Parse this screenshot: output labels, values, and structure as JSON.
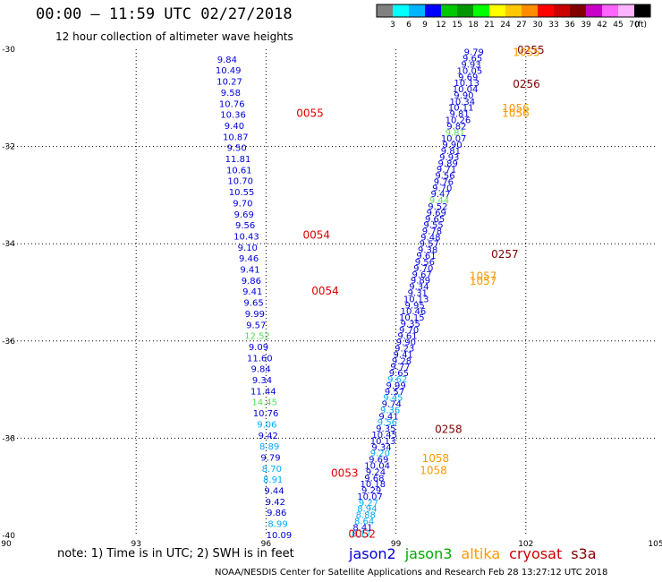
{
  "header": {
    "title": "00:00 – 11:59 UTC 02/27/2018",
    "subtitle": "12 hour collection of altimeter wave heights"
  },
  "legend_scale": {
    "unit": "(ft)",
    "bins": [
      {
        "label": "3",
        "color": "#808080"
      },
      {
        "label": "6",
        "color": "#00ffff"
      },
      {
        "label": "9",
        "color": "#00b4ff"
      },
      {
        "label": "12",
        "color": "#0000ff"
      },
      {
        "label": "15",
        "color": "#00c800"
      },
      {
        "label": "18",
        "color": "#009600"
      },
      {
        "label": "21",
        "color": "#00ff00"
      },
      {
        "label": "24",
        "color": "#ffff00"
      },
      {
        "label": "27",
        "color": "#ffc800"
      },
      {
        "label": "30",
        "color": "#ff8c00"
      },
      {
        "label": "33",
        "color": "#ff0000"
      },
      {
        "label": "36",
        "color": "#c80000"
      },
      {
        "label": "39",
        "color": "#800000"
      },
      {
        "label": "42",
        "color": "#c800c8"
      },
      {
        "label": "45",
        "color": "#ff64ff"
      },
      {
        "label": "70",
        "color": "#ffb4ff"
      },
      {
        "label": "",
        "color": "#000000"
      }
    ]
  },
  "note": "note: 1) Time is in UTC; 2) SWH is in feet",
  "satellites": [
    {
      "name": "jason2",
      "color": "#0000dd"
    },
    {
      "name": "jason3",
      "color": "#00aa00"
    },
    {
      "name": "altika",
      "color": "#ff9900"
    },
    {
      "name": "cryosat",
      "color": "#cc0000"
    },
    {
      "name": "s3a",
      "color": "#800000"
    }
  ],
  "footer": "NOAA/NESDIS Center for Satellite Applications and Research    Feb 28 13:27:12 UTC 2018",
  "chart_data": {
    "type": "scatter",
    "x_ticks": [
      "90",
      "93",
      "96",
      "99",
      "102",
      "105"
    ],
    "y_ticks": [
      "-30",
      "-32",
      "-34",
      "-36",
      "-38",
      "-40"
    ],
    "xlim": [
      90,
      105
    ],
    "ylim": [
      -40,
      -30
    ],
    "grid": true,
    "track1": {
      "lat_start": -30.2,
      "lat_end": -39.98,
      "lon_start": 95.1,
      "lon_end": 96.3,
      "values": [
        "9.84",
        "10.49",
        "10.27",
        "9.58",
        "10.76",
        "10.36",
        "9.40",
        "10.87",
        "9.50",
        "11.81",
        "10.61",
        "10.70",
        "10.55",
        "9.70",
        "9.69",
        "9.56",
        "10.43",
        "9.10",
        "9.46",
        "9.41",
        "9.86",
        "9.41",
        "9.65",
        "9.99",
        "9.57",
        "12.52",
        "9.09",
        "11.60",
        "9.84",
        "9.34",
        "11.44",
        "14.45",
        "10.76",
        "9.06",
        "9.42",
        "8.89",
        "9.79",
        "8.70",
        "8.91",
        "9.44",
        "9.42",
        "9.86",
        "8.99",
        "10.09"
      ],
      "colors": [
        "#0000dd",
        "#0000dd",
        "#0000dd",
        "#0000dd",
        "#0000dd",
        "#0000dd",
        "#0000dd",
        "#0000dd",
        "#0000dd",
        "#0000dd",
        "#0000dd",
        "#0000dd",
        "#0000dd",
        "#0000dd",
        "#0000dd",
        "#0000dd",
        "#0000dd",
        "#0000dd",
        "#0000dd",
        "#0000dd",
        "#0000dd",
        "#0000dd",
        "#0000dd",
        "#0000dd",
        "#0000dd",
        "#55dd55",
        "#0000dd",
        "#0000dd",
        "#0000dd",
        "#0000dd",
        "#0000dd",
        "#55dd55",
        "#0000dd",
        "#00aaff",
        "#0000dd",
        "#00aaff",
        "#0000dd",
        "#00aaff",
        "#00aaff",
        "#0000dd",
        "#0000dd",
        "#0000dd",
        "#00aaff",
        "#0000dd"
      ]
    },
    "track2": {
      "lat_start": -30.05,
      "lat_end": -39.95,
      "lon_start": 100.8,
      "lon_end": 98.2,
      "values": [
        "9.79",
        "9.65",
        "9.93",
        "10.05",
        "9.69",
        "10.13",
        "10.04",
        "9.90",
        "10.34",
        "10.11",
        "9.81",
        "10.26",
        "9.82",
        "9.81",
        "10.07",
        "9.90",
        "9.81",
        "9.93",
        "9.89",
        "9.71",
        "9.56",
        "9.76",
        "9.70",
        "9.47",
        "9.44",
        "9.52",
        "9.69",
        "9.65",
        "9.55",
        "9.78",
        "9.48",
        "9.57",
        "9.38",
        "9.61",
        "9.56",
        "9.70",
        "9.67",
        "9.89",
        "9.34",
        "9.31",
        "10.13",
        "9.95",
        "10.46",
        "10.15",
        "9.35",
        "9.70",
        "9.61",
        "9.90",
        "9.23",
        "9.41",
        "9.28",
        "9.77",
        "9.65",
        "9.62",
        "9.99",
        "9.57",
        "9.45",
        "9.74",
        "9.36",
        "9.41",
        "9.56",
        "9.35",
        "10.45",
        "10.13",
        "9.34",
        "9.20",
        "9.69",
        "10.04",
        "9.24",
        "9.68",
        "10.18",
        "9.29",
        "10.07",
        "9.27",
        "8.94",
        "8.88",
        "8.64",
        "8.41",
        "8.17"
      ],
      "colors": [
        "#0000dd",
        "#0000dd",
        "#0000dd",
        "#0000dd",
        "#0000dd",
        "#0000dd",
        "#0000dd",
        "#0000dd",
        "#0000dd",
        "#0000dd",
        "#0000dd",
        "#0000dd",
        "#0000dd",
        "#55dd55",
        "#0000dd",
        "#0000dd",
        "#0000dd",
        "#0000dd",
        "#0000dd",
        "#0000dd",
        "#0000dd",
        "#0000dd",
        "#0000dd",
        "#0000dd",
        "#55dd55",
        "#0000dd",
        "#0000dd",
        "#0000dd",
        "#0000dd",
        "#0000dd",
        "#0000dd",
        "#0000dd",
        "#0000dd",
        "#0000dd",
        "#0000dd",
        "#0000dd",
        "#0000dd",
        "#0000dd",
        "#0000dd",
        "#0000dd",
        "#0000dd",
        "#0000dd",
        "#0000dd",
        "#0000dd",
        "#0000dd",
        "#0000dd",
        "#0000dd",
        "#0000dd",
        "#0000dd",
        "#0000dd",
        "#0000dd",
        "#0000dd",
        "#0000dd",
        "#00aaff",
        "#0000dd",
        "#0000dd",
        "#00aaff",
        "#0000dd",
        "#00aaff",
        "#0000dd",
        "#00aaff",
        "#0000dd",
        "#0000dd",
        "#0000dd",
        "#0000dd",
        "#00aaff",
        "#0000dd",
        "#0000dd",
        "#0000dd",
        "#0000dd",
        "#0000dd",
        "#0000dd",
        "#0000dd",
        "#00aaff",
        "#00aaff",
        "#00aaff",
        "#00aaff",
        "#0000dd",
        "#00aaff"
      ]
    },
    "time_labels": [
      {
        "text": "0055",
        "lon": 96.7,
        "lat": -31.3,
        "color": "#dd0000"
      },
      {
        "text": "0054",
        "lon": 96.85,
        "lat": -33.8,
        "color": "#dd0000"
      },
      {
        "text": "0054",
        "lon": 97.05,
        "lat": -34.95,
        "color": "#dd0000"
      },
      {
        "text": "0053",
        "lon": 97.5,
        "lat": -38.7,
        "color": "#dd0000"
      },
      {
        "text": "0052",
        "lon": 97.9,
        "lat": -39.95,
        "color": "#dd0000"
      },
      {
        "text": "0255",
        "lon": 101.8,
        "lat": -30.0,
        "color": "#800000"
      },
      {
        "text": "0256",
        "lon": 101.7,
        "lat": -30.7,
        "color": "#800000"
      },
      {
        "text": "1055",
        "lon": 101.7,
        "lat": -30.05,
        "color": "#ff9900"
      },
      {
        "text": "1056",
        "lon": 101.45,
        "lat": -31.2,
        "color": "#ff9900"
      },
      {
        "text": "1056",
        "lon": 101.45,
        "lat": -31.3,
        "color": "#ff9900"
      },
      {
        "text": "0257",
        "lon": 101.2,
        "lat": -34.2,
        "color": "#800000"
      },
      {
        "text": "1057",
        "lon": 100.7,
        "lat": -34.65,
        "color": "#ff9900"
      },
      {
        "text": "1057",
        "lon": 100.7,
        "lat": -34.75,
        "color": "#ff9900"
      },
      {
        "text": "0258",
        "lon": 99.9,
        "lat": -37.8,
        "color": "#800000"
      },
      {
        "text": "1058",
        "lon": 99.6,
        "lat": -38.4,
        "color": "#ff9900"
      },
      {
        "text": "1058",
        "lon": 99.55,
        "lat": -38.65,
        "color": "#ff9900"
      }
    ]
  }
}
